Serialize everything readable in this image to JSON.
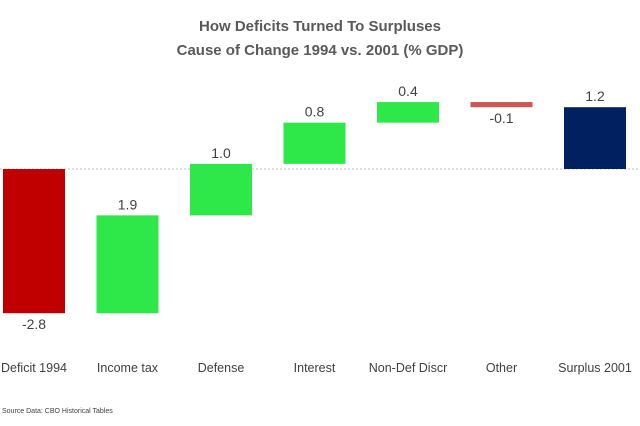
{
  "chart_data": {
    "type": "waterfall",
    "title": "How Deficits Turned To Surpluses",
    "subtitle": "Cause of Change 1994 vs. 2001 (% GDP)",
    "categories": [
      "Deficit 1994",
      "Income tax",
      "Defense",
      "Interest",
      "Non-Def Discr",
      "Other",
      "Surplus 2001"
    ],
    "values": [
      -2.8,
      1.9,
      1.0,
      0.8,
      0.4,
      -0.1,
      1.2
    ],
    "value_labels": [
      "-2.8",
      "1.9",
      "1.0",
      "0.8",
      "0.4",
      "-0.1",
      "1.2"
    ],
    "bar_kinds": [
      "total",
      "change",
      "change",
      "change",
      "change",
      "change",
      "total"
    ],
    "ylim": [
      -3.0,
      1.5
    ],
    "grid": false,
    "zero_line": "dotted",
    "colors": {
      "deficit": "#c00000",
      "increase": "#2ee84a",
      "decrease": "#cc5555",
      "surplus": "#002060"
    },
    "source_note": "Source Data: CBO Historical Tables"
  }
}
